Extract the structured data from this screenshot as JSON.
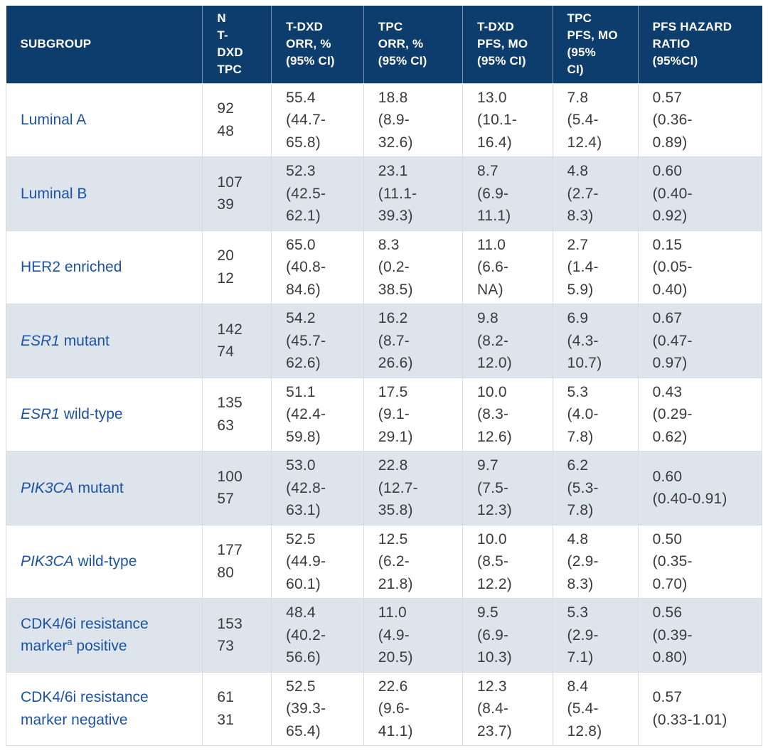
{
  "colors": {
    "header_bg": "#0d3d6c",
    "header_text": "#ffffff",
    "stripe_bg": "#dee4ec",
    "subgroup_text": "#1d53a5",
    "data_text": "#3b3b3b",
    "border": "#d8dce2"
  },
  "chart_data": {
    "type": "table",
    "columns": [
      {
        "key": "subgroup",
        "label": "SUBGROUP"
      },
      {
        "key": "n-t-dxd-tpc",
        "label": "N\nT-\nDXD\nTPC"
      },
      {
        "key": "t-dxd-orr",
        "label": "T-DXD\nORR, %\n(95% CI)"
      },
      {
        "key": "tpc-orr",
        "label": "TPC\nORR, %\n(95% CI)"
      },
      {
        "key": "t-dxd-pfs",
        "label": "T-DXD\nPFS, MO\n(95% CI)"
      },
      {
        "key": "tpc-pfs",
        "label": "TPC\nPFS, MO\n(95%\nCI)"
      },
      {
        "key": "pfs-hazard-ratio",
        "label": "PFS HAZARD\nRATIO\n(95%CI)"
      }
    ],
    "rows": [
      {
        "subgroup": [
          {
            "text": "Luminal A"
          }
        ],
        "cells": [
          "92\n48",
          "55.4\n(44.7-\n65.8)",
          "18.8\n(8.9-\n32.6)",
          "13.0\n(10.1-\n16.4)",
          "7.8\n(5.4-\n12.4)",
          "0.57\n(0.36-\n0.89)"
        ]
      },
      {
        "subgroup": [
          {
            "text": "Luminal B"
          }
        ],
        "cells": [
          "107\n39",
          "52.3\n(42.5-\n62.1)",
          "23.1\n(11.1-\n39.3)",
          "8.7\n(6.9-\n11.1)",
          "4.8\n(2.7-\n8.3)",
          "0.60\n(0.40-\n0.92)"
        ]
      },
      {
        "subgroup": [
          {
            "text": "HER2 enriched"
          }
        ],
        "cells": [
          "20\n12",
          "65.0\n(40.8-\n84.6)",
          "8.3\n(0.2-\n38.5)",
          "11.0\n(6.6-\nNA)",
          "2.7\n(1.4-\n5.9)",
          "0.15\n(0.05-\n0.40)"
        ]
      },
      {
        "subgroup": [
          {
            "text": "ESR1",
            "italic": true
          },
          {
            "text": " mutant"
          }
        ],
        "cells": [
          "142\n74",
          "54.2\n(45.7-\n62.6)",
          "16.2\n(8.7-\n26.6)",
          "9.8\n(8.2-\n12.0)",
          "6.9\n(4.3-\n10.7)",
          "0.67\n(0.47-\n0.97)"
        ]
      },
      {
        "subgroup": [
          {
            "text": "ESR1",
            "italic": true
          },
          {
            "text": " wild-type"
          }
        ],
        "cells": [
          "135\n63",
          "51.1\n(42.4-\n59.8)",
          "17.5\n(9.1-\n29.1)",
          "10.0\n(8.3-\n12.6)",
          "5.3\n(4.0-\n7.8)",
          "0.43\n(0.29-\n0.62)"
        ]
      },
      {
        "subgroup": [
          {
            "text": "PIK3CA",
            "italic": true
          },
          {
            "text": " mutant"
          }
        ],
        "cells": [
          "100\n57",
          "53.0\n(42.8-\n63.1)",
          "22.8\n(12.7-\n35.8)",
          "9.7\n(7.5-\n12.3)",
          "6.2\n(5.3-\n7.8)",
          "0.60\n(0.40-0.91)"
        ]
      },
      {
        "subgroup": [
          {
            "text": "PIK3CA",
            "italic": true
          },
          {
            "text": " wild-type"
          }
        ],
        "cells": [
          "177\n80",
          "52.5\n(44.9-\n60.1)",
          "12.5\n(6.2-\n21.8)",
          "10.0\n(8.5-\n12.2)",
          "4.8\n(2.9-\n8.3)",
          "0.50\n(0.35-\n0.70)"
        ]
      },
      {
        "subgroup": [
          {
            "text": "CDK4/6i resistance marker"
          },
          {
            "text": "a",
            "sup": true
          },
          {
            "text": " positive"
          }
        ],
        "cells": [
          "153\n73",
          "48.4\n(40.2-\n56.6)",
          "11.0\n(4.9-\n20.5)",
          "9.5\n(6.9-\n10.3)",
          "5.3\n(2.9-\n7.1)",
          "0.56\n(0.39-\n0.80)"
        ]
      },
      {
        "subgroup": [
          {
            "text": "CDK4/6i resistance marker negative"
          }
        ],
        "cells": [
          "61\n31",
          "52.5\n(39.3-\n65.4)",
          "22.6\n(9.6-\n41.1)",
          "12.3\n(8.4-\n23.7)",
          "8.4\n(5.4-\n12.8)",
          "0.57\n(0.33-1.01)"
        ]
      }
    ]
  }
}
